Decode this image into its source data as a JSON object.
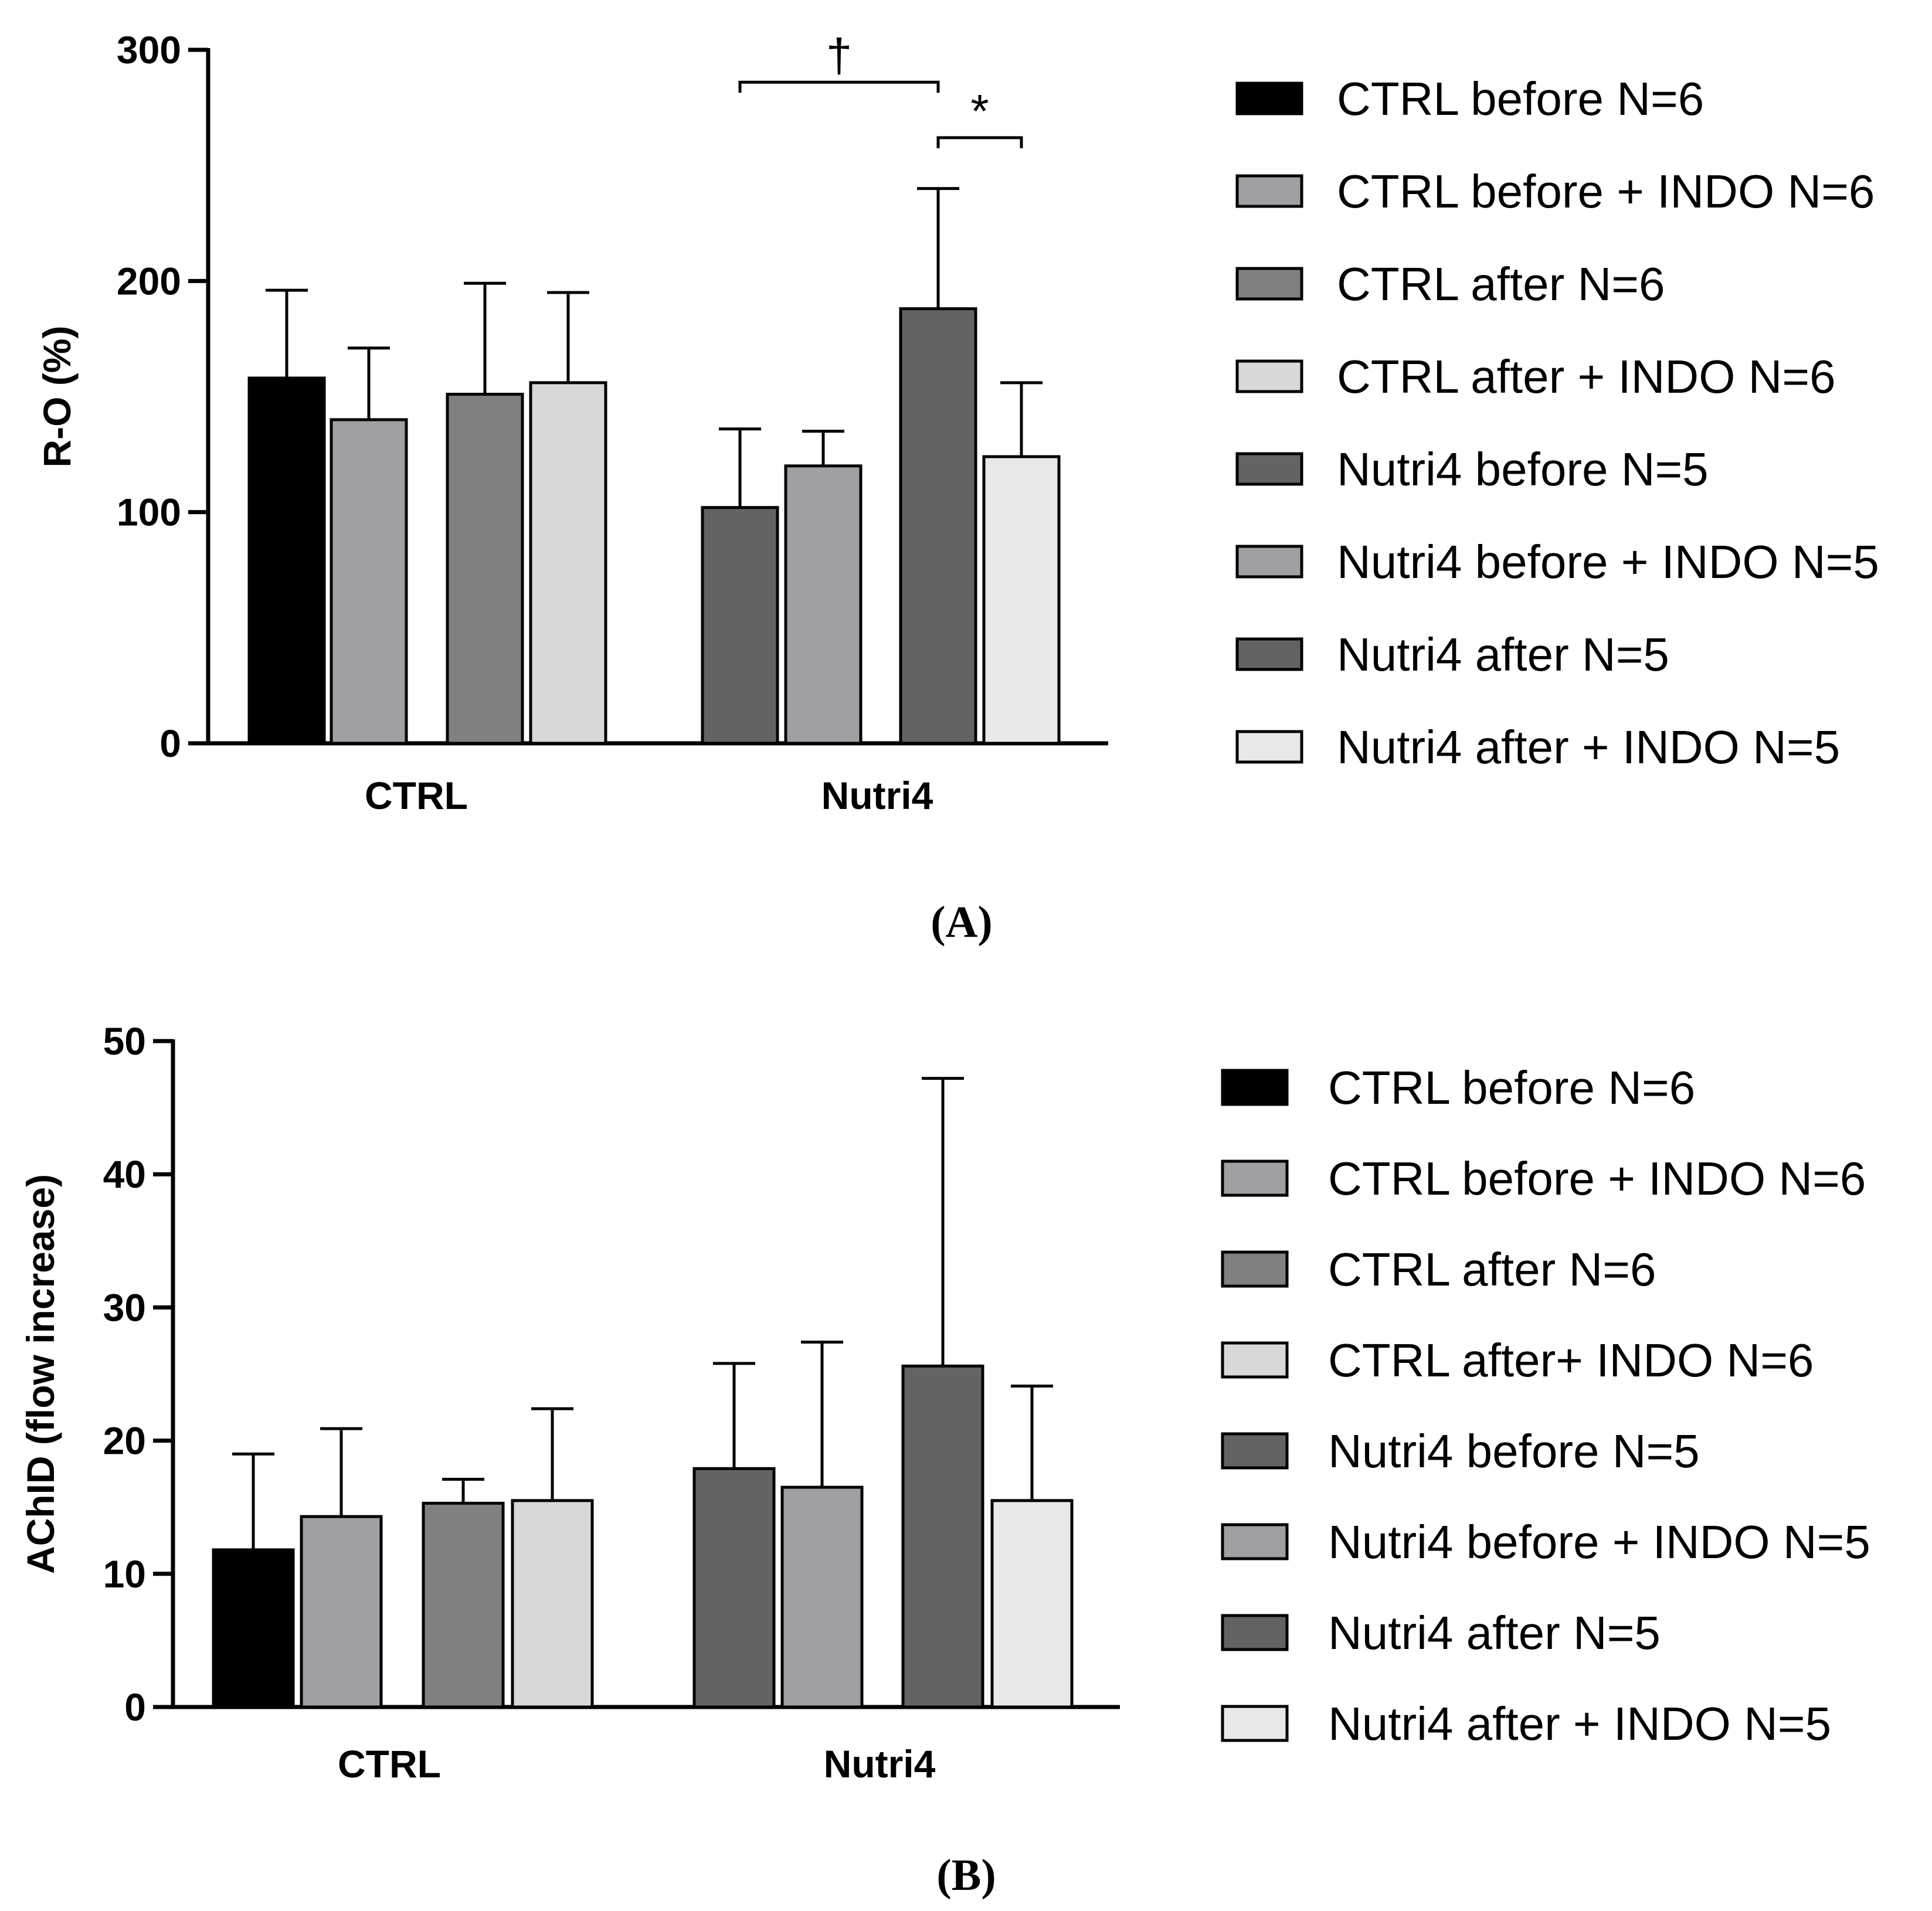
{
  "chart_data": [
    {
      "type": "bar",
      "panel_label": "(A)",
      "ylabel": "R-O (%)",
      "xlabel": "",
      "ylim": [
        0,
        300
      ],
      "yticks": [
        "0",
        "100",
        "200",
        "300"
      ],
      "groups": [
        "CTRL",
        "Nutri4"
      ],
      "legend_position": "right",
      "series": [
        {
          "name": "CTRL before N=6",
          "group": "CTRL",
          "value": 158,
          "error": 38,
          "color": "#000000",
          "swatch": "#000000"
        },
        {
          "name": "CTRL before + INDO N=6",
          "group": "CTRL",
          "value": 140,
          "error": 31,
          "color": "#a0a0a4",
          "swatch": "#a0a0a4"
        },
        {
          "name": "CTRL after N=6",
          "group": "CTRL",
          "value": 151,
          "error": 48,
          "color": "#808080",
          "swatch": "#808080"
        },
        {
          "name": "CTRL after + INDO N=6",
          "group": "CTRL",
          "value": 156,
          "error": 39,
          "color": "#d8d8d8",
          "swatch": "#d8d8d8"
        },
        {
          "name": "Nutri4 before N=5",
          "group": "Nutri4",
          "value": 102,
          "error": 34,
          "color": "#636363",
          "swatch": "#636363"
        },
        {
          "name": "Nutri4 before + INDO N=5",
          "group": "Nutri4",
          "value": 120,
          "error": 15,
          "color": "#a0a0a4",
          "swatch": "#a0a0a4"
        },
        {
          "name": "Nutri4 after N=5",
          "group": "Nutri4",
          "value": 188,
          "error": 52,
          "color": "#636363",
          "swatch": "#636363"
        },
        {
          "name": "Nutri4 after + INDO N=5",
          "group": "Nutri4",
          "value": 124,
          "error": 32,
          "color": "#e8e8e8",
          "swatch": "#e8e8e8"
        }
      ],
      "annotations": [
        {
          "symbol": "†",
          "from_bar": 4,
          "to_bar": 6,
          "y_value": 286
        },
        {
          "symbol": "*",
          "from_bar": 6,
          "to_bar": 7,
          "y_value": 262
        }
      ]
    },
    {
      "type": "bar",
      "panel_label": "(B)",
      "ylabel": "AChID (flow increase)",
      "xlabel": "",
      "ylim": [
        0,
        50
      ],
      "yticks": [
        "0",
        "10",
        "20",
        "30",
        "40",
        "50"
      ],
      "groups": [
        "CTRL",
        "Nutri4"
      ],
      "legend_position": "right",
      "series": [
        {
          "name": "CTRL before N=6",
          "group": "CTRL",
          "value": 11.8,
          "error": 7.2,
          "color": "#000000",
          "swatch": "#000000"
        },
        {
          "name": "CTRL before + INDO N=6",
          "group": "CTRL",
          "value": 14.3,
          "error": 6.6,
          "color": "#a0a0a4",
          "swatch": "#a0a0a4"
        },
        {
          "name": "CTRL after N=6",
          "group": "CTRL",
          "value": 15.3,
          "error": 1.8,
          "color": "#808080",
          "swatch": "#808080"
        },
        {
          "name": "CTRL after+ INDO N=6",
          "group": "CTRL",
          "value": 15.5,
          "error": 6.9,
          "color": "#d8d8d8",
          "swatch": "#d8d8d8"
        },
        {
          "name": "Nutri4 before N=5",
          "group": "Nutri4",
          "value": 17.9,
          "error": 7.9,
          "color": "#636363",
          "swatch": "#636363"
        },
        {
          "name": "Nutri4 before + INDO N=5",
          "group": "Nutri4",
          "value": 16.5,
          "error": 10.9,
          "color": "#a0a0a4",
          "swatch": "#a0a0a4"
        },
        {
          "name": "Nutri4 after N=5",
          "group": "Nutri4",
          "value": 25.6,
          "error": 21.6,
          "color": "#636363",
          "swatch": "#636363"
        },
        {
          "name": "Nutri4 after + INDO N=5",
          "group": "Nutri4",
          "value": 15.5,
          "error": 8.6,
          "color": "#e8e8e8",
          "swatch": "#e8e8e8"
        }
      ],
      "annotations": []
    }
  ]
}
